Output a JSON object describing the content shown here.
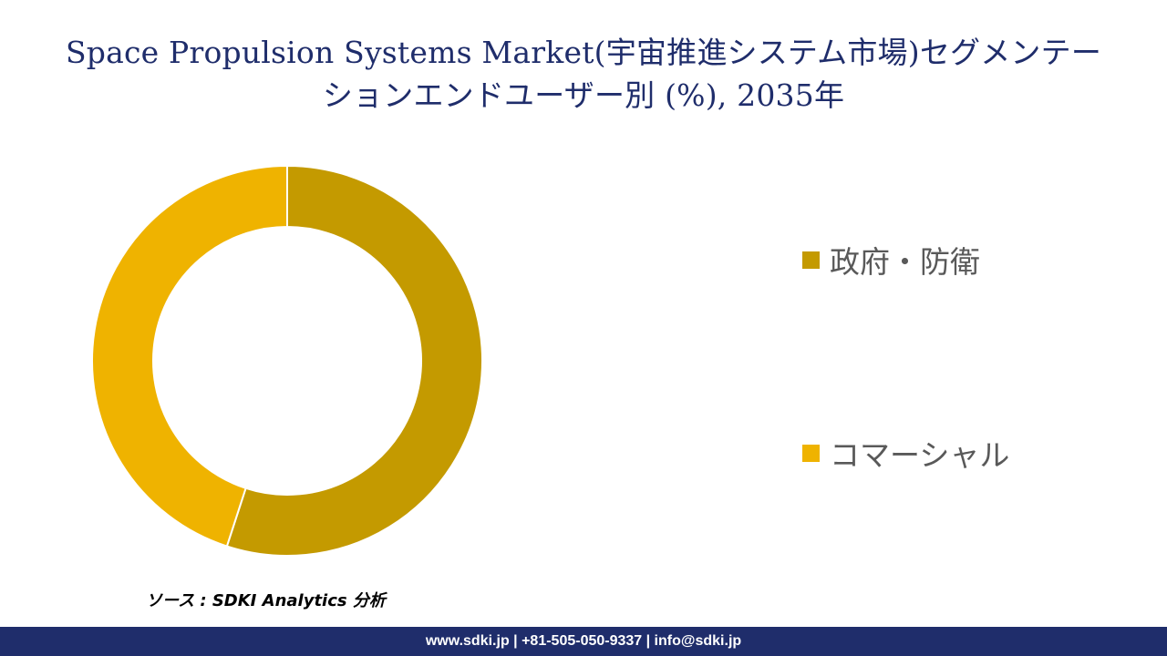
{
  "title": {
    "line1": "Space Propulsion Systems Market(宇宙推進システム市場)セグメンテー",
    "line2": "ションエンドユーザー別 (%), 2035年"
  },
  "chart_data": {
    "type": "pie",
    "title": "Space Propulsion Systems Market(宇宙推進システム市場)セグメンテーションエンドユーザー別 (%), 2035年",
    "categories": [
      "政府・防衛",
      "コマーシャル"
    ],
    "values": [
      55,
      45
    ],
    "colors": [
      "#c49a00",
      "#efb300"
    ],
    "legend_position": "right",
    "donut": true
  },
  "source_text": "ソース : SDKI Analytics 分析",
  "footer_text": "www.sdki.jp | +81-505-050-9337 | info@sdki.jp"
}
